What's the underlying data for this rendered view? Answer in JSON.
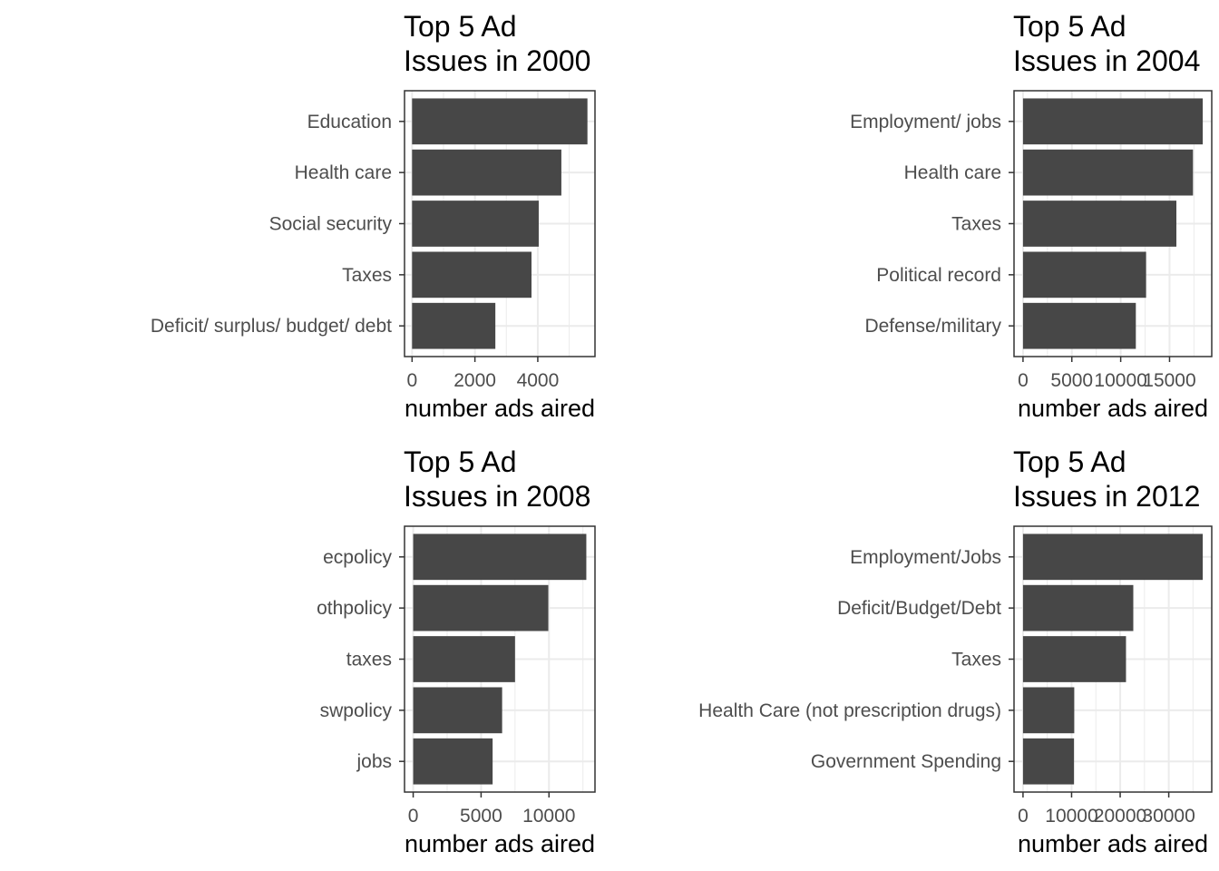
{
  "chart_data": [
    {
      "type": "bar",
      "orientation": "horizontal",
      "title": [
        "Top 5 Ad",
        "Issues in 2000"
      ],
      "xlabel": "number ads aired",
      "categories": [
        "Education",
        "Health care",
        "Social security",
        "Taxes",
        "Deficit/ surplus/ budget/ debt"
      ],
      "values": [
        5580,
        4750,
        4030,
        3800,
        2650
      ],
      "xlim": [
        -240,
        5820
      ],
      "xticks": [
        0,
        2000,
        4000
      ],
      "xtick_labels": [
        "0",
        "2000",
        "4000"
      ],
      "minor_ticks": [
        1000,
        3000,
        5000
      ],
      "grid": true
    },
    {
      "type": "bar",
      "orientation": "horizontal",
      "title": [
        "Top 5 Ad",
        "Issues in 2004"
      ],
      "xlabel": "number ads aired",
      "categories": [
        "Employment/ jobs",
        "Health care",
        "Taxes",
        "Political record",
        "Defense/military"
      ],
      "values": [
        18400,
        17400,
        15700,
        12600,
        11550
      ],
      "xlim": [
        -920,
        19320
      ],
      "xticks": [
        0,
        5000,
        10000,
        15000
      ],
      "xtick_labels": [
        "0",
        "5000",
        "10000",
        "15000"
      ],
      "minor_ticks": [
        2500,
        7500,
        12500,
        17500
      ],
      "grid": true
    },
    {
      "type": "bar",
      "orientation": "horizontal",
      "title": [
        "Top 5 Ad",
        "Issues in 2008"
      ],
      "xlabel": "number ads aired",
      "categories": [
        "ecpolicy",
        "othpolicy",
        "taxes",
        "swpolicy",
        "jobs"
      ],
      "values": [
        12750,
        9950,
        7500,
        6550,
        5850
      ],
      "xlim": [
        -638,
        13388
      ],
      "xticks": [
        0,
        5000,
        10000
      ],
      "xtick_labels": [
        "0",
        "5000",
        "10000"
      ],
      "minor_ticks": [
        2500,
        7500,
        12500
      ],
      "grid": true
    },
    {
      "type": "bar",
      "orientation": "horizontal",
      "title": [
        "Top 5 Ad",
        "Issues in 2012"
      ],
      "xlabel": "number ads aired",
      "categories": [
        "Employment/Jobs",
        "Deficit/Budget/Debt",
        "Taxes",
        "Health Care (not prescription drugs)",
        "Government Spending"
      ],
      "values": [
        37000,
        22700,
        21200,
        10550,
        10500
      ],
      "xlim": [
        -1850,
        38850
      ],
      "xticks": [
        0,
        10000,
        20000,
        30000
      ],
      "xtick_labels": [
        "0",
        "10000",
        "20000",
        "30000"
      ],
      "minor_ticks": [
        5000,
        15000,
        25000,
        35000
      ],
      "grid": true
    }
  ]
}
